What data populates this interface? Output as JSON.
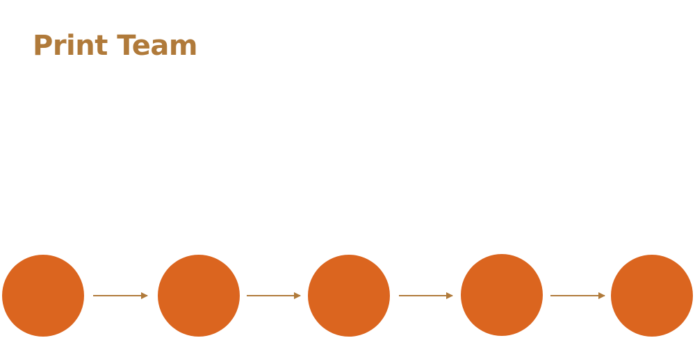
{
  "title": "Print Team",
  "colors": {
    "title": "#B07A3A",
    "node_fill": "#DB651F",
    "arrow": "#B07A3A"
  },
  "flow": {
    "node_count": 5,
    "connections": [
      [
        0,
        1
      ],
      [
        1,
        2
      ],
      [
        2,
        3
      ],
      [
        3,
        4
      ]
    ]
  }
}
